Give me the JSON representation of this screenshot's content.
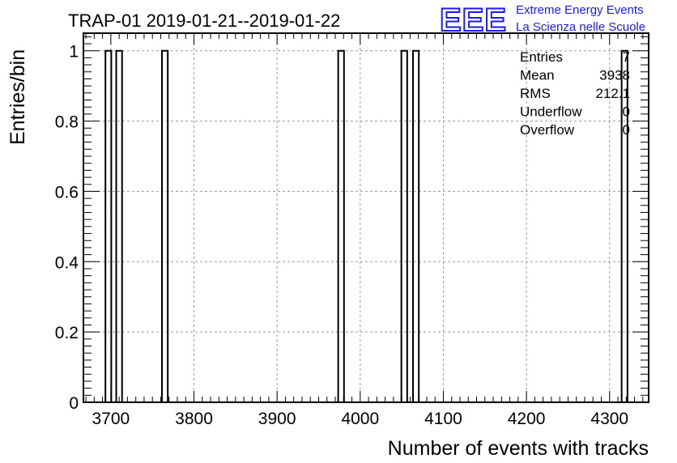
{
  "chart_data": {
    "type": "bar",
    "title": "TRAP-01 2019-01-21--2019-01-22",
    "xlabel": "Number of events with tracks",
    "ylabel": "Entries/bin",
    "xlim": [
      3667,
      4347
    ],
    "ylim": [
      0,
      1.05
    ],
    "x_ticks": [
      "3700",
      "3800",
      "3900",
      "4000",
      "4100",
      "4200",
      "4300"
    ],
    "y_ticks": [
      "0",
      "0.2",
      "0.4",
      "0.6",
      "0.8",
      "1"
    ],
    "grid": true,
    "bin_width": 7,
    "bars": [
      {
        "x": 3697,
        "value": 1
      },
      {
        "x": 3710,
        "value": 1
      },
      {
        "x": 3765,
        "value": 1
      },
      {
        "x": 3977,
        "value": 1
      },
      {
        "x": 4053,
        "value": 1
      },
      {
        "x": 4067,
        "value": 1
      },
      {
        "x": 4318,
        "value": 1
      }
    ],
    "stats": [
      {
        "label": "Entries",
        "value": "7"
      },
      {
        "label": "Mean",
        "value": "3938"
      },
      {
        "label": "RMS",
        "value": "212.1"
      },
      {
        "label": "Underflow",
        "value": "0"
      },
      {
        "label": "Overflow",
        "value": "0"
      }
    ]
  },
  "logo": {
    "mark": "EEE",
    "line1": "Extreme Energy Events",
    "line2": "La Scienza nelle Scuole",
    "color": "#1a1aff"
  }
}
